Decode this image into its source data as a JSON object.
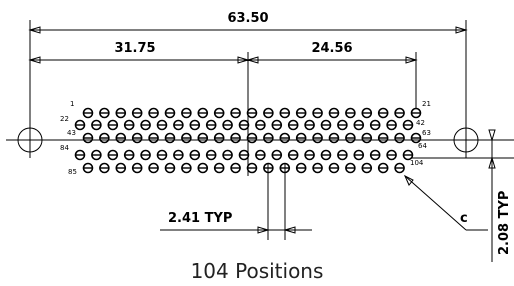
{
  "dimensions": {
    "overall": "63.50",
    "left": "31.75",
    "right": "24.56",
    "pitch": "2.41 TYP",
    "row_pitch": "2.08 TYP"
  },
  "pin_labels": {
    "row1_start": "1",
    "row1_end": "21",
    "row2_start": "22",
    "row2_end": "42",
    "row3_start": "43",
    "row3_end": "63",
    "row4_start": "84",
    "row4_end": "64",
    "row5_start": "85",
    "row5_end": "104"
  },
  "callout": "c",
  "caption": "104 Positions"
}
